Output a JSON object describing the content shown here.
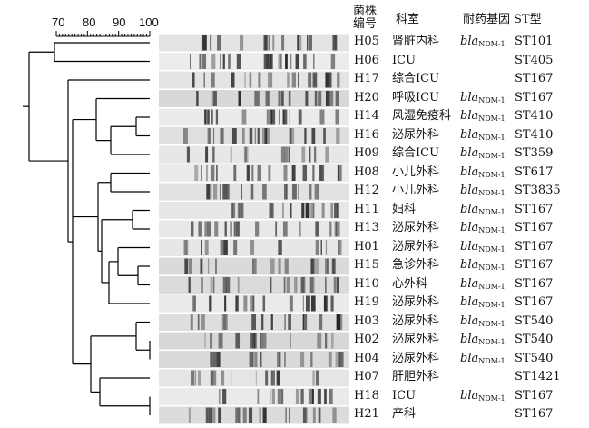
{
  "header": {
    "strain_col": "菌株编号",
    "dept_col": "科室",
    "gene_col": "耐药基因",
    "st_col": "ST型"
  },
  "scale": {
    "ticks": [
      "70",
      "80",
      "90",
      "100"
    ]
  },
  "gene": {
    "italic": "bla",
    "subscript": "NDM-1"
  },
  "rows": [
    {
      "strain": "H05",
      "dept": "肾脏内科",
      "gene": true,
      "st": "ST101"
    },
    {
      "strain": "H06",
      "dept": "ICU",
      "gene": false,
      "st": "ST405"
    },
    {
      "strain": "H17",
      "dept": "综合ICU",
      "gene": false,
      "st": "ST167"
    },
    {
      "strain": "H20",
      "dept": "呼吸ICU",
      "gene": true,
      "st": "ST167"
    },
    {
      "strain": "H14",
      "dept": "风湿免疫科",
      "gene": true,
      "st": "ST410"
    },
    {
      "strain": "H16",
      "dept": "泌尿外科",
      "gene": true,
      "st": "ST410"
    },
    {
      "strain": "H09",
      "dept": "综合ICU",
      "gene": true,
      "st": "ST359"
    },
    {
      "strain": "H08",
      "dept": "小儿外科",
      "gene": true,
      "st": "ST617"
    },
    {
      "strain": "H12",
      "dept": "小儿外科",
      "gene": true,
      "st": "ST3835"
    },
    {
      "strain": "H11",
      "dept": "妇科",
      "gene": true,
      "st": "ST167"
    },
    {
      "strain": "H13",
      "dept": "泌尿外科",
      "gene": true,
      "st": "ST167"
    },
    {
      "strain": "H01",
      "dept": "泌尿外科",
      "gene": true,
      "st": "ST167"
    },
    {
      "strain": "H15",
      "dept": "急诊外科",
      "gene": true,
      "st": "ST167"
    },
    {
      "strain": "H10",
      "dept": "心外科",
      "gene": true,
      "st": "ST167"
    },
    {
      "strain": "H19",
      "dept": "泌尿外科",
      "gene": true,
      "st": "ST167"
    },
    {
      "strain": "H03",
      "dept": "泌尿外科",
      "gene": true,
      "st": "ST540"
    },
    {
      "strain": "H02",
      "dept": "泌尿外科",
      "gene": true,
      "st": "ST540"
    },
    {
      "strain": "H04",
      "dept": "泌尿外科",
      "gene": true,
      "st": "ST540"
    },
    {
      "strain": "H07",
      "dept": "肝胆外科",
      "gene": false,
      "st": "ST1421"
    },
    {
      "strain": "H18",
      "dept": "ICU",
      "gene": true,
      "st": "ST167"
    },
    {
      "strain": "H21",
      "dept": "产科",
      "gene": false,
      "st": "ST167"
    }
  ]
}
